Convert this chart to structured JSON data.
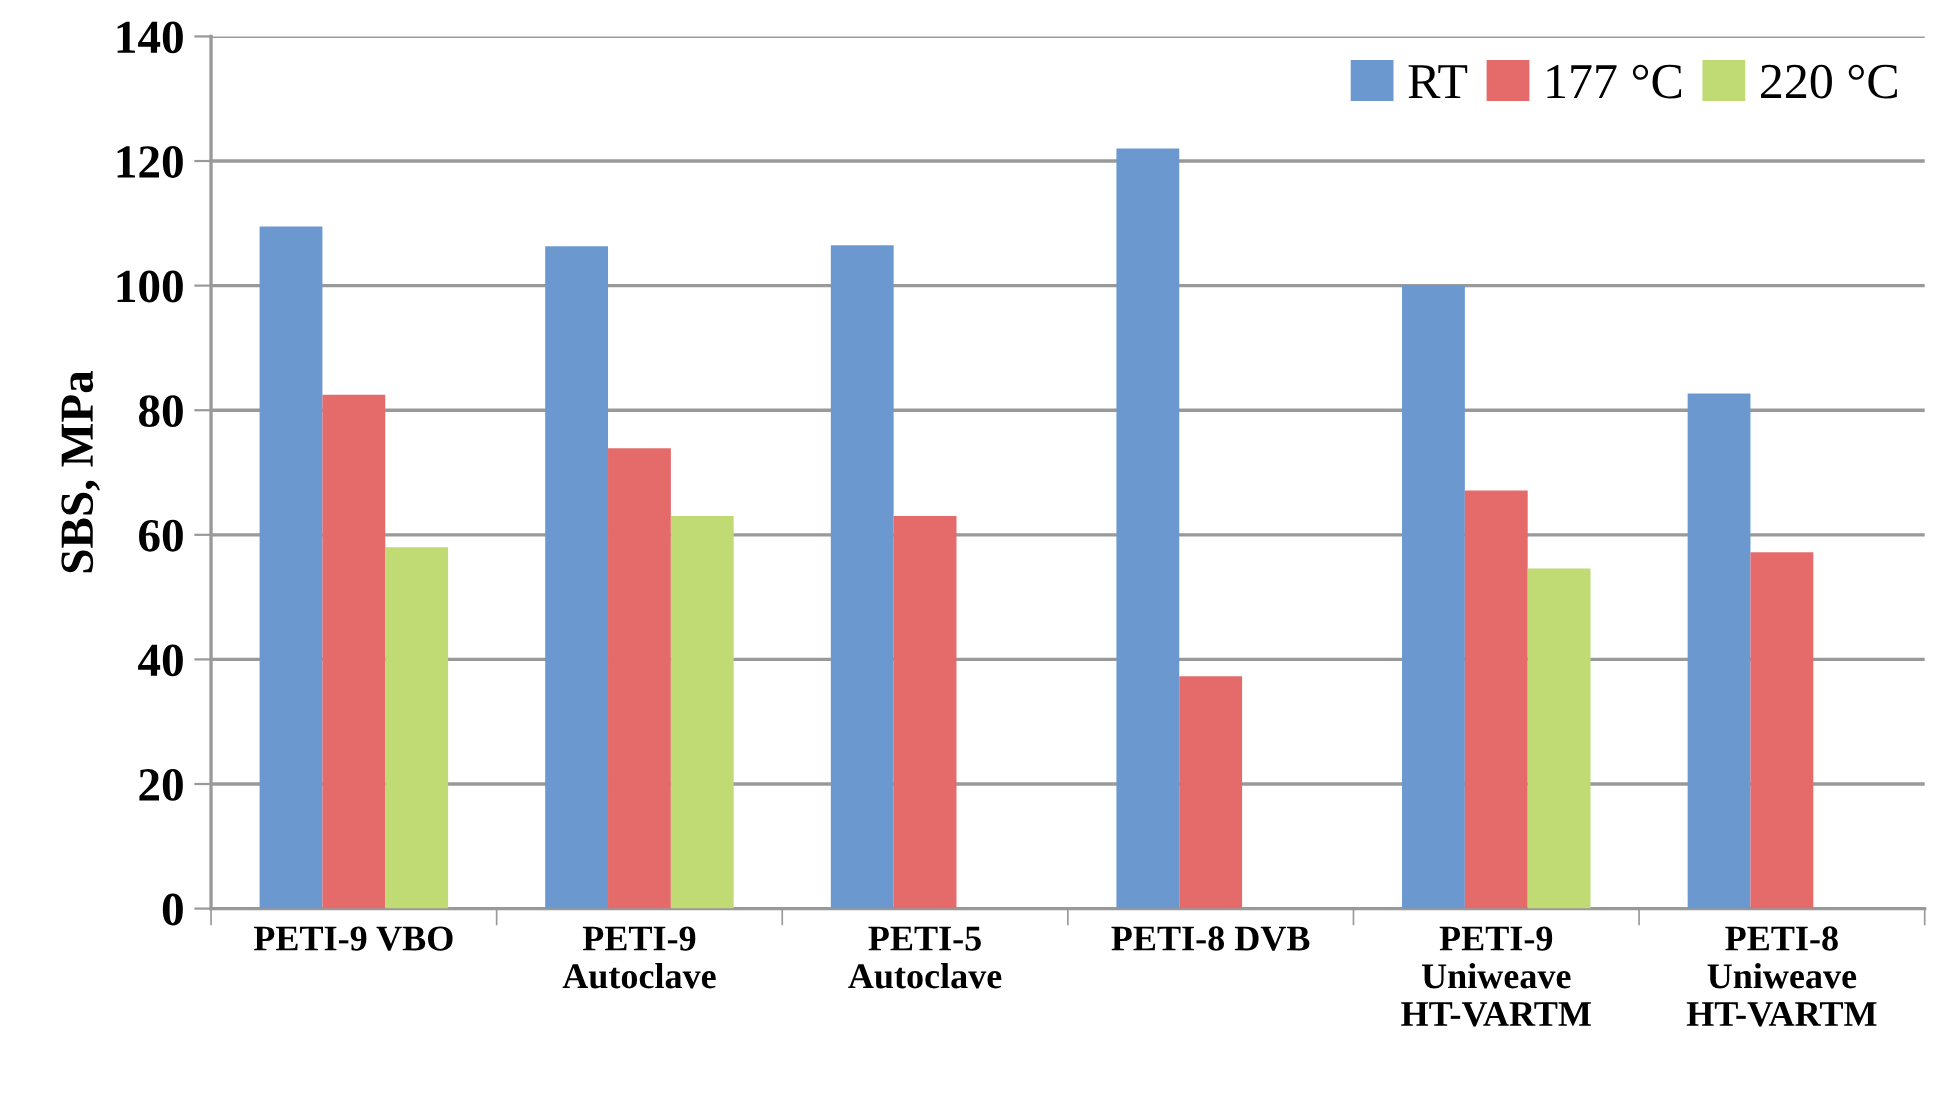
{
  "chart_data": {
    "type": "bar",
    "ylabel": "SBS, MPa",
    "categories": [
      "PETI-9 VBO",
      "PETI-9\nAutoclave",
      "PETI-5\nAutoclave",
      "PETI-8 DVB",
      "PETI-9\nUniweave\nHT-VARTM",
      "PETI-8\nUniweave\nHT-VARTM"
    ],
    "series": [
      {
        "name": "RT",
        "color": "#6c98d0",
        "values": [
          109.5,
          106.3,
          106.5,
          122,
          100,
          82.7
        ]
      },
      {
        "name": "177 °C",
        "color": "#e56b6b",
        "values": [
          82.5,
          73.9,
          63,
          37.3,
          67.1,
          57.2
        ]
      },
      {
        "name": "220 °C",
        "color": "#c0da74",
        "values": [
          58,
          63,
          null,
          null,
          54.6,
          null
        ]
      }
    ],
    "ylim": [
      0,
      140
    ],
    "yticks": [
      0,
      20,
      40,
      60,
      80,
      100,
      120,
      140
    ],
    "grid": "y",
    "legend": "top right"
  }
}
